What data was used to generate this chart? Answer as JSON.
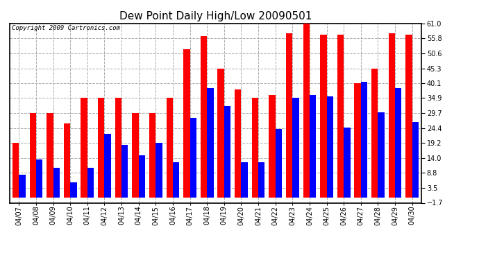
{
  "title": "Dew Point Daily High/Low 20090501",
  "copyright": "Copyright 2009 Cartronics.com",
  "dates": [
    "04/07",
    "04/08",
    "04/09",
    "04/10",
    "04/11",
    "04/12",
    "04/13",
    "04/14",
    "04/15",
    "04/16",
    "04/17",
    "04/18",
    "04/19",
    "04/20",
    "04/21",
    "04/22",
    "04/23",
    "04/24",
    "04/25",
    "04/26",
    "04/27",
    "04/28",
    "04/29",
    "04/30"
  ],
  "highs": [
    19.2,
    29.7,
    29.7,
    26.0,
    34.9,
    34.9,
    34.9,
    29.7,
    29.7,
    34.9,
    52.0,
    56.5,
    45.3,
    38.0,
    34.9,
    36.0,
    57.5,
    61.0,
    57.0,
    57.0,
    40.1,
    45.3,
    57.5,
    57.0
  ],
  "lows": [
    8.0,
    13.5,
    10.5,
    5.5,
    10.5,
    22.5,
    18.5,
    15.0,
    19.2,
    12.5,
    28.0,
    38.5,
    32.0,
    12.5,
    12.5,
    24.0,
    35.0,
    36.0,
    35.5,
    24.5,
    40.5,
    30.0,
    38.5,
    26.5
  ],
  "high_color": "#ff0000",
  "low_color": "#0000ff",
  "bg_color": "#ffffff",
  "grid_color": "#aaaaaa",
  "yticks": [
    -1.7,
    3.5,
    8.8,
    14.0,
    19.2,
    24.4,
    29.7,
    34.9,
    40.1,
    45.3,
    50.6,
    55.8,
    61.0
  ],
  "ymin": -1.7,
  "ymax": 61.0,
  "title_fontsize": 11,
  "tick_fontsize": 7,
  "copyright_fontsize": 6.5
}
